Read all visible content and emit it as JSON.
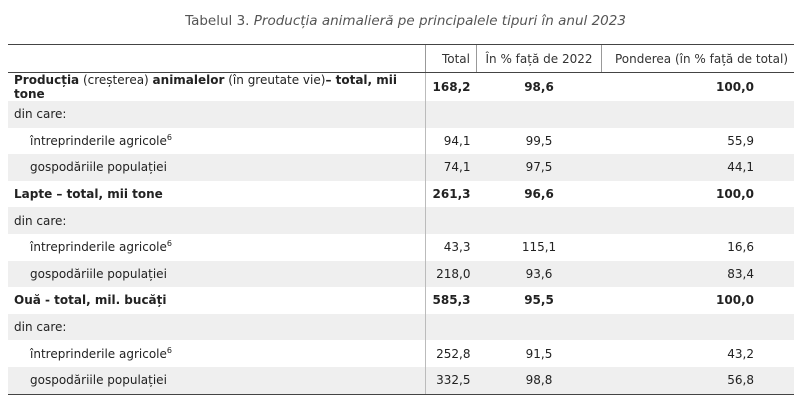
{
  "caption": {
    "lead": "Tabelul 3.",
    "title": "Producția animalieră pe principalele tipuri în anul 2023"
  },
  "headers": {
    "col0": "",
    "col1": "Total",
    "col2": "În % față de 2022",
    "col3": "Ponderea (în % față de total)"
  },
  "rows": {
    "r0": {
      "label_b1": "Producția",
      "label_n1": " (creșterea) ",
      "label_b2": "animalelor",
      "label_n2": " (în greutate vie)",
      "label_b3": "– total, mii tone",
      "total": "168,2",
      "pct2022": "98,6",
      "share": "100,0"
    },
    "r1": {
      "label": "din care:"
    },
    "r2": {
      "label": "întreprinderile agricole",
      "sup": "6",
      "total": "94,1",
      "pct2022": "99,5",
      "share": "55,9"
    },
    "r3": {
      "label": "gospodăriile populației",
      "total": "74,1",
      "pct2022": "97,5",
      "share": "44,1"
    },
    "r4": {
      "label": "Lapte – total, mii tone",
      "total": "261,3",
      "pct2022": "96,6",
      "share": "100,0"
    },
    "r5": {
      "label": "din care:"
    },
    "r6": {
      "label": "întreprinderile agricole",
      "sup": "6",
      "total": "43,3",
      "pct2022": "115,1",
      "share": "16,6"
    },
    "r7": {
      "label": "gospodăriile populației",
      "total": "218,0",
      "pct2022": "93,6",
      "share": "83,4"
    },
    "r8": {
      "label": "Ouă - total, mil. bucăți",
      "total": "585,3",
      "pct2022": "95,5",
      "share": "100,0"
    },
    "r9": {
      "label": "din care:"
    },
    "r10": {
      "label": "întreprinderile agricole",
      "sup": "6",
      "total": "252,8",
      "pct2022": "91,5",
      "share": "43,2"
    },
    "r11": {
      "label": "gospodăriile populației",
      "total": "332,5",
      "pct2022": "98,8",
      "share": "56,8"
    }
  }
}
